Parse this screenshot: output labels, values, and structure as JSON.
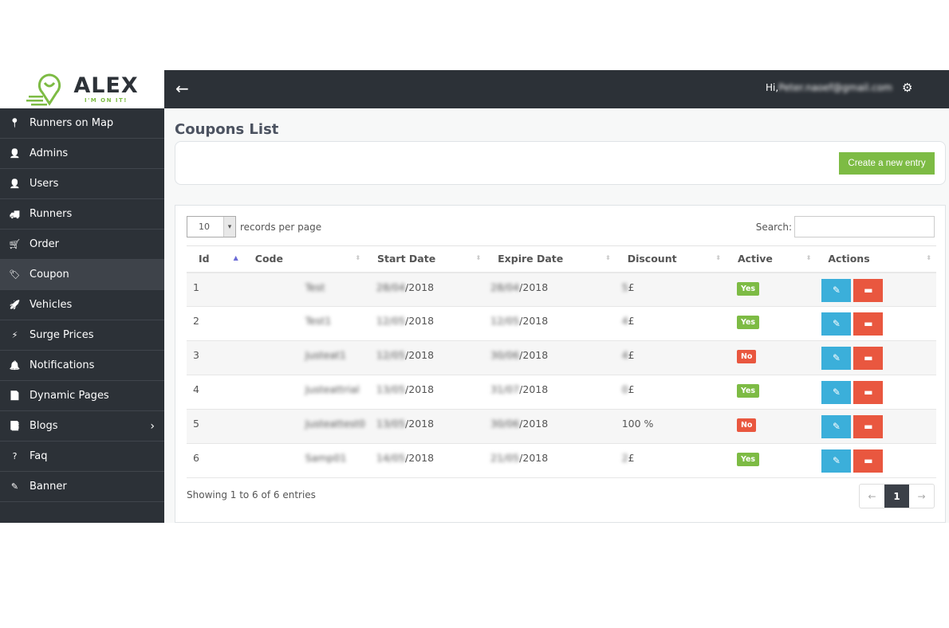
{
  "logo": {
    "name": "ALEX",
    "tagline": "I'M ON IT!"
  },
  "sidebar": {
    "items": [
      {
        "label": "Runners on Map",
        "icon": "map-pin-icon",
        "glyph": "📍"
      },
      {
        "label": "Admins",
        "icon": "user-icon",
        "glyph": "👤"
      },
      {
        "label": "Users",
        "icon": "user-icon",
        "glyph": "👤"
      },
      {
        "label": "Runners",
        "icon": "truck-icon",
        "glyph": "🚚"
      },
      {
        "label": "Order",
        "icon": "cart-icon",
        "glyph": "🛒"
      },
      {
        "label": "Coupon",
        "icon": "tag-icon",
        "glyph": "🏷",
        "active": true
      },
      {
        "label": "Vehicles",
        "icon": "rocket-icon",
        "glyph": "🚀"
      },
      {
        "label": "Surge Prices",
        "icon": "bolt-icon",
        "glyph": "⚡"
      },
      {
        "label": "Notifications",
        "icon": "bell-icon",
        "glyph": "🔔"
      },
      {
        "label": "Dynamic Pages",
        "icon": "file-icon",
        "glyph": "📄"
      },
      {
        "label": "Blogs",
        "icon": "files-icon",
        "glyph": "📑",
        "submenu": true
      },
      {
        "label": "Faq",
        "icon": "question-icon",
        "glyph": "?"
      },
      {
        "label": "Banner",
        "icon": "magic-wand-icon",
        "glyph": "✎"
      }
    ]
  },
  "header": {
    "back": "←",
    "greeting": "Hi,",
    "user": "Peter.naoef@gmail.com",
    "gear": "⚙"
  },
  "page": {
    "title": "Coupons List",
    "create_label": "Create a new entry"
  },
  "table": {
    "length_value": "10",
    "length_label": "records per page",
    "search_label": "Search:",
    "search_value": "",
    "columns": [
      "Id",
      "Code",
      "Start Date",
      "Expire Date",
      "Discount",
      "Active",
      "Actions"
    ],
    "sorted_column": "Id",
    "rows": [
      {
        "id": "1",
        "code": "Test",
        "start_blur": "28/04",
        "start": "/2018",
        "expire_blur": "28/04",
        "expire": "/2018",
        "disc_blur": "5",
        "disc": "£",
        "active": "Yes"
      },
      {
        "id": "2",
        "code": "Test1",
        "start_blur": "12/05",
        "start": "/2018",
        "expire_blur": "12/05",
        "expire": "/2018",
        "disc_blur": "4",
        "disc": "£",
        "active": "Yes"
      },
      {
        "id": "3",
        "code": "Justeat1",
        "start_blur": "12/05",
        "start": "/2018",
        "expire_blur": "30/06",
        "expire": "/2018",
        "disc_blur": "4",
        "disc": "£",
        "active": "No"
      },
      {
        "id": "4",
        "code": "Justeattrial",
        "start_blur": "13/05",
        "start": "/2018",
        "expire_blur": "31/07",
        "expire": "/2018",
        "disc_blur": "0",
        "disc": "£",
        "active": "Yes"
      },
      {
        "id": "5",
        "code": "Justeattest0",
        "start_blur": "13/05",
        "start": "/2018",
        "expire_blur": "30/06",
        "expire": "/2018",
        "disc_blur": "",
        "disc": "100 %",
        "active": "No"
      },
      {
        "id": "6",
        "code": "Samp01",
        "start_blur": "14/05",
        "start": "/2018",
        "expire_blur": "21/05",
        "expire": "/2018",
        "disc_blur": "2",
        "disc": "£",
        "active": "Yes"
      }
    ],
    "info": "Showing 1 to 6 of 6 entries",
    "pager": {
      "prev": "←",
      "current": "1",
      "next": "→"
    }
  },
  "colors": {
    "sidebar": "#2c3137",
    "green": "#7dbb44",
    "red": "#e9573f",
    "blue": "#3bafda"
  }
}
